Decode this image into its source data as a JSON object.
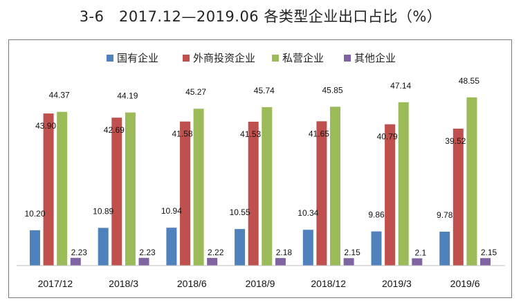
{
  "chart_data": {
    "type": "bar",
    "title": "3-6　2017.12—2019.06 各类型企业出口占比（%）",
    "categories": [
      "2017/12",
      "2018/3",
      "2018/6",
      "2018/9",
      "2018/12",
      "2019/3",
      "2019/6"
    ],
    "series": [
      {
        "name": "国有企业",
        "color": "#4f81bd",
        "values": [
          10.2,
          10.89,
          10.94,
          10.55,
          10.34,
          9.86,
          9.78
        ],
        "labels": [
          "10.20",
          "10.89",
          "10.94",
          "10.55",
          "10.34",
          "9.86",
          "9.78"
        ]
      },
      {
        "name": "外商投资企业",
        "color": "#c0504d",
        "values": [
          43.9,
          42.69,
          41.58,
          41.53,
          41.65,
          40.79,
          39.52
        ],
        "labels": [
          "43.90",
          "42.69",
          "41.58",
          "41.53",
          "41.65",
          "40.79",
          "39.52"
        ]
      },
      {
        "name": "私营企业",
        "color": "#9bbb59",
        "values": [
          44.37,
          44.19,
          45.27,
          45.74,
          45.85,
          47.14,
          48.55
        ],
        "labels": [
          "44.37",
          "44.19",
          "45.27",
          "45.74",
          "45.85",
          "47.14",
          "48.55"
        ]
      },
      {
        "name": "其他企业",
        "color": "#8064a2",
        "values": [
          2.23,
          2.23,
          2.22,
          2.18,
          2.15,
          2.1,
          2.15
        ],
        "labels": [
          "2.23",
          "2.23",
          "2.22",
          "2.18",
          "2.15",
          "2.1",
          "2.15"
        ]
      }
    ],
    "ylim": [
      0,
      51.5
    ],
    "legend": "top",
    "grid": false
  }
}
